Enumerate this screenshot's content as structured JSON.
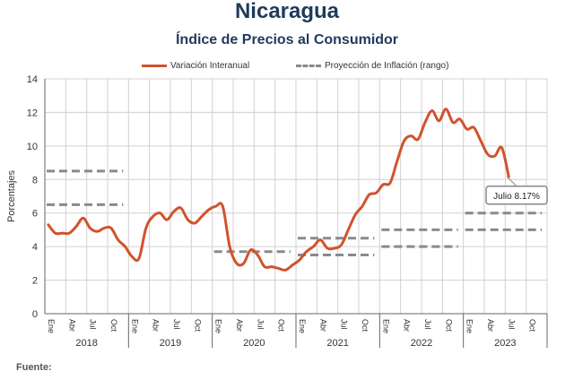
{
  "page": {
    "title": "Nicaragua",
    "subtitle": "Índice de Precios al Consumidor",
    "footer": "Fuente:"
  },
  "colors": {
    "title": "#1f3a5c",
    "series": "#d2522c",
    "projection": "#8a8a8a",
    "grid": "#d0d0d0"
  },
  "chart_data": {
    "type": "line",
    "title": "Índice de Precios al Consumidor",
    "ylabel": "Porcentajes",
    "ylim": [
      0,
      14
    ],
    "yticks": [
      0,
      2,
      4,
      6,
      8,
      10,
      12,
      14
    ],
    "grid": true,
    "legend_placement": "top",
    "month_labels": [
      "Ene",
      "Abr",
      "Jul",
      "Oct"
    ],
    "years": [
      "2018",
      "2019",
      "2020",
      "2021",
      "2022",
      "2023"
    ],
    "series": [
      {
        "name": "Variación Interanual",
        "start": "2018-01",
        "end": "2023-07",
        "values": [
          5.3,
          4.8,
          4.8,
          4.8,
          5.2,
          5.7,
          5.1,
          4.9,
          5.1,
          5.1,
          4.4,
          4.0,
          3.4,
          3.3,
          5.1,
          5.8,
          6.0,
          5.6,
          6.1,
          6.3,
          5.6,
          5.4,
          5.8,
          6.2,
          6.4,
          6.4,
          4.0,
          3.0,
          3.0,
          3.8,
          3.5,
          2.8,
          2.8,
          2.7,
          2.6,
          2.9,
          3.2,
          3.7,
          4.0,
          4.4,
          3.9,
          3.9,
          4.1,
          5.0,
          5.9,
          6.4,
          7.1,
          7.2,
          7.7,
          7.8,
          9.1,
          10.3,
          10.6,
          10.4,
          11.4,
          12.1,
          11.5,
          12.2,
          11.4,
          11.6,
          11.0,
          11.1,
          10.3,
          9.5,
          9.4,
          9.9,
          8.17
        ],
        "callout": "Julio 8.17%"
      },
      {
        "name": "Proyección de Inflación (rango)",
        "type": "range",
        "ranges": [
          {
            "year": "2018",
            "low": 6.5,
            "high": 8.5
          },
          {
            "year": "2020",
            "low": 3.7,
            "high": 3.7
          },
          {
            "year": "2021",
            "low": 3.5,
            "high": 4.5
          },
          {
            "year": "2022",
            "low": 4.0,
            "high": 5.0
          },
          {
            "year": "2023",
            "low": 5.0,
            "high": 6.0
          }
        ]
      }
    ]
  }
}
